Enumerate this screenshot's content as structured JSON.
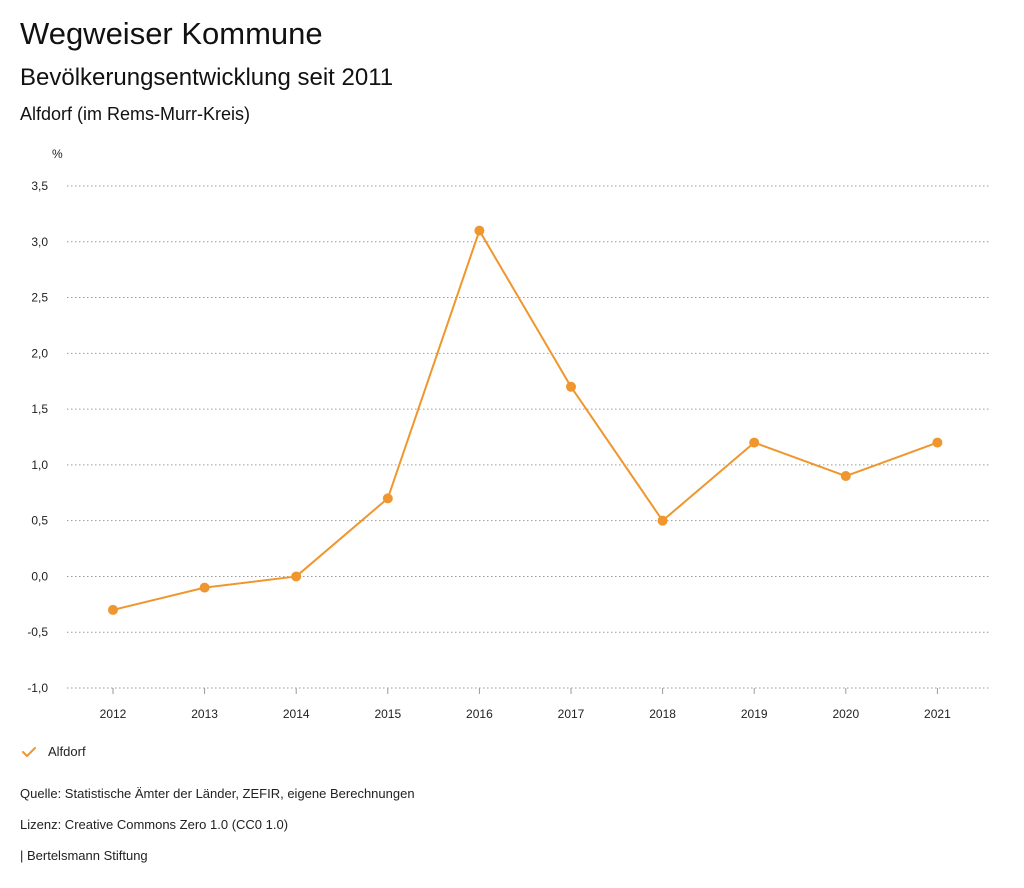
{
  "header": {
    "title": "Wegweiser Kommune",
    "subtitle": "Bevölkerungsentwicklung seit 2011",
    "region": "Alfdorf (im Rems-Murr-Kreis)"
  },
  "chart_data": {
    "type": "line",
    "title": "Bevölkerungsentwicklung seit 2011",
    "ylabel": "%",
    "xlabel": "",
    "categories": [
      "2012",
      "2013",
      "2014",
      "2015",
      "2016",
      "2017",
      "2018",
      "2019",
      "2020",
      "2021"
    ],
    "series": [
      {
        "name": "Alfdorf",
        "color": "#f0962e",
        "values": [
          -0.3,
          -0.1,
          0.0,
          0.7,
          3.1,
          1.7,
          0.5,
          1.2,
          0.9,
          1.2
        ]
      }
    ],
    "ylim": [
      -1.0,
      3.5
    ],
    "yticks": [
      -1.0,
      -0.5,
      0.0,
      0.5,
      1.0,
      1.5,
      2.0,
      2.5,
      3.0,
      3.5
    ],
    "ytick_labels": [
      "-1,0",
      "-0,5",
      "0,0",
      "0,5",
      "1,0",
      "1,5",
      "2,0",
      "2,5",
      "3,0",
      "3,5"
    ],
    "grid": true,
    "legend_position": "bottom-left"
  },
  "legend": {
    "label": "Alfdorf",
    "icon": "check-icon",
    "color": "#f0962e"
  },
  "footer": {
    "source": "Quelle: Statistische Ämter der Länder, ZEFIR, eigene Berechnungen",
    "license": "Lizenz: Creative Commons Zero 1.0 (CC0 1.0)",
    "brand": "| Bertelsmann Stiftung"
  }
}
